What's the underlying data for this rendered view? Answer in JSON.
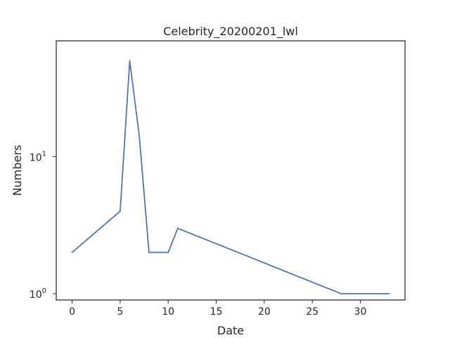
{
  "chart_data": {
    "type": "line",
    "title": "Celebrity_20200201_lwl",
    "xlabel": "Date",
    "ylabel": "Numbers",
    "y_scale": "log",
    "xlim": [
      -1.65,
      34.65
    ],
    "ylim": [
      0.9,
      70
    ],
    "x_ticks": [
      0,
      5,
      10,
      15,
      20,
      25,
      30
    ],
    "y_ticks": [
      {
        "value": 1,
        "base": "10",
        "exp": "0"
      },
      {
        "value": 10,
        "base": "10",
        "exp": "1"
      }
    ],
    "grid": false,
    "line_color": "#4c72b0",
    "series": [
      {
        "x": [
          0,
          5,
          6,
          7,
          8,
          10,
          11,
          28,
          33
        ],
        "values": [
          2,
          4,
          50,
          14,
          2,
          2,
          3,
          1,
          1
        ]
      }
    ]
  }
}
